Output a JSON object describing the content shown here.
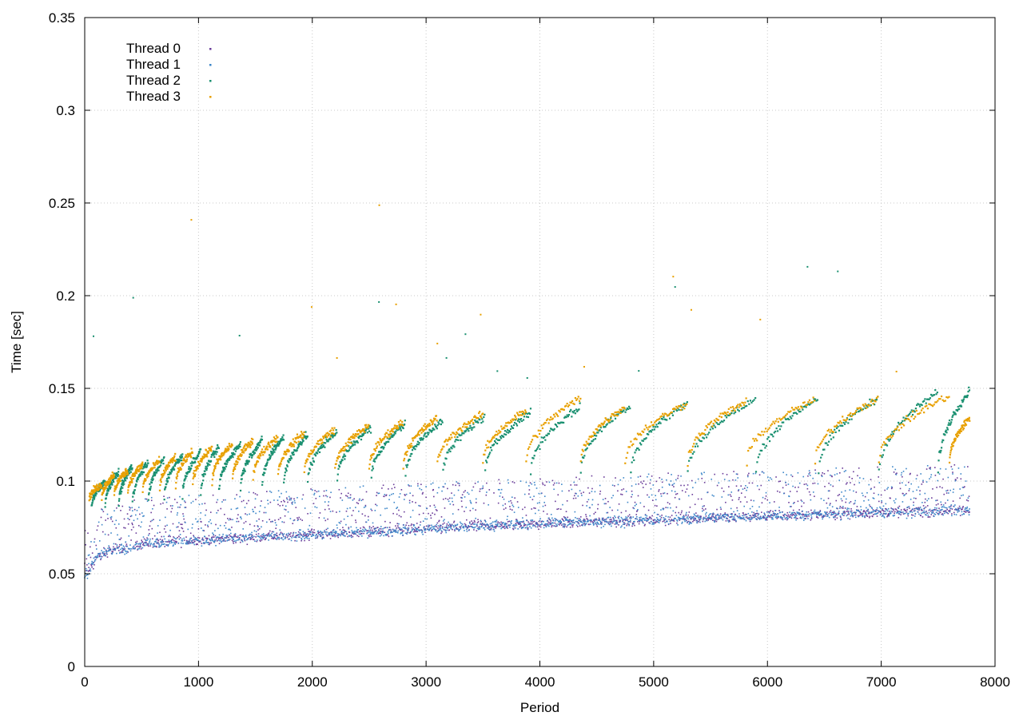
{
  "chart_data": {
    "type": "scatter",
    "xlabel": "Period",
    "ylabel": "Time [sec]",
    "xlim": [
      0,
      8000
    ],
    "ylim": [
      0,
      0.35
    ],
    "x_ticks": [
      0,
      1000,
      2000,
      3000,
      4000,
      5000,
      6000,
      7000,
      8000
    ],
    "x_tick_labels": [
      "0",
      "1000",
      "2000",
      "3000",
      "4000",
      "5000",
      "6000",
      "7000",
      "8000"
    ],
    "y_ticks": [
      0,
      0.05,
      0.1,
      0.15,
      0.2,
      0.25,
      0.3,
      0.35
    ],
    "y_tick_labels": [
      "0",
      "0.05",
      "0.1",
      "0.15",
      "0.2",
      "0.25",
      "0.3",
      "0.35"
    ],
    "grid": true,
    "legend_position": "top-left",
    "period_count": 7780,
    "series": [
      {
        "name": "Thread 0",
        "color": "#6a3d9a",
        "pattern": "baseline",
        "x": [
          0,
          100,
          200,
          500,
          1000,
          2000,
          3000,
          4000,
          5000,
          6000,
          7000,
          7780
        ],
        "y": [
          0.048,
          0.058,
          0.062,
          0.066,
          0.068,
          0.071,
          0.074,
          0.077,
          0.079,
          0.081,
          0.083,
          0.084
        ],
        "spread_above": 0.025
      },
      {
        "name": "Thread 1",
        "color": "#3d87c9",
        "pattern": "baseline",
        "x": [
          0,
          100,
          200,
          500,
          1000,
          2000,
          3000,
          4000,
          5000,
          6000,
          7000,
          7780
        ],
        "y": [
          0.048,
          0.058,
          0.062,
          0.066,
          0.068,
          0.071,
          0.074,
          0.077,
          0.079,
          0.081,
          0.083,
          0.084
        ],
        "spread_above": 0.025
      },
      {
        "name": "Thread 2",
        "color": "#1a9070",
        "pattern": "sawtooth",
        "resets_x": [
          60,
          180,
          300,
          420,
          560,
          700,
          860,
          1020,
          1180,
          1370,
          1560,
          1750,
          1960,
          2220,
          2520,
          2820,
          3150,
          3520,
          3920,
          4360,
          4800,
          5300,
          5900,
          6450,
          6980,
          7500
        ],
        "start_y": 0.085,
        "peak_y": [
          0.1,
          0.105,
          0.108,
          0.11,
          0.112,
          0.114,
          0.116,
          0.118,
          0.12,
          0.122,
          0.124,
          0.125,
          0.127,
          0.129,
          0.131,
          0.133,
          0.135,
          0.137,
          0.14,
          0.141,
          0.142,
          0.144,
          0.145,
          0.145,
          0.148,
          0.149
        ]
      },
      {
        "name": "Thread 3",
        "color": "#e8a000",
        "pattern": "sawtooth",
        "resets_x": [
          40,
          150,
          260,
          380,
          510,
          660,
          800,
          950,
          1120,
          1300,
          1480,
          1700,
          1930,
          2200,
          2500,
          2800,
          3100,
          3500,
          3880,
          4360,
          4750,
          5300,
          5820,
          6420,
          6980,
          7600
        ],
        "start_y": 0.09,
        "peak_y": [
          0.098,
          0.103,
          0.106,
          0.109,
          0.111,
          0.113,
          0.116,
          0.118,
          0.12,
          0.122,
          0.124,
          0.126,
          0.128,
          0.13,
          0.132,
          0.134,
          0.136,
          0.138,
          0.145,
          0.14,
          0.142,
          0.143,
          0.144,
          0.145,
          0.146,
          0.134
        ]
      }
    ]
  }
}
